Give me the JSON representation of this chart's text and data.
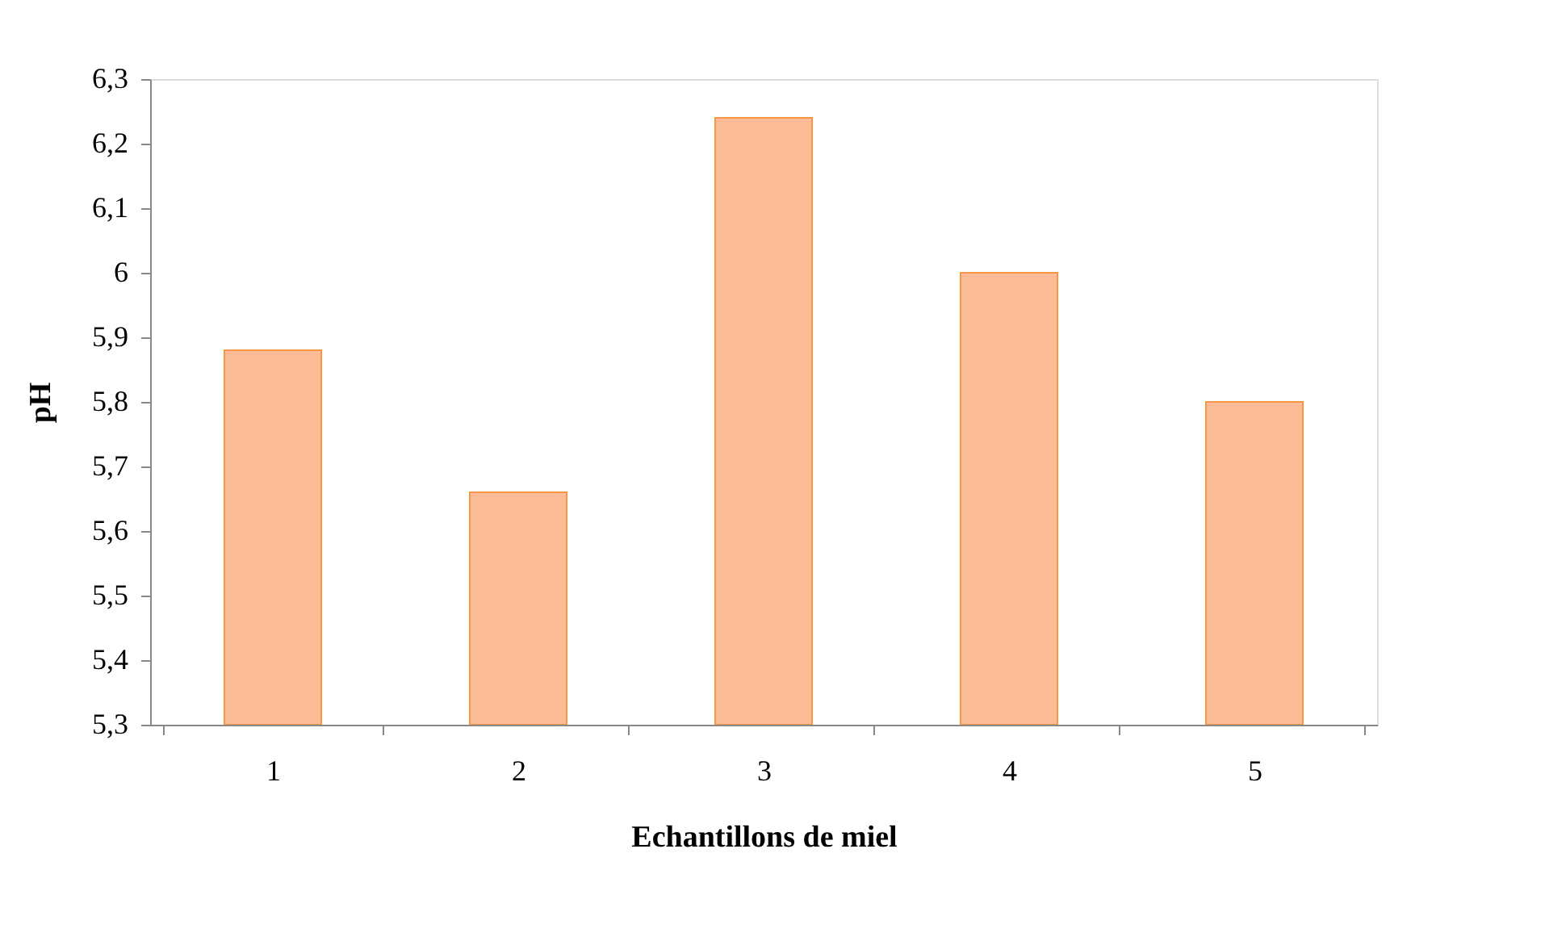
{
  "chart_data": {
    "type": "bar",
    "xlabel": "Echantillons de miel",
    "ylabel": "pH",
    "categories": [
      "1",
      "2",
      "3",
      "4",
      "5"
    ],
    "values": [
      5.88,
      5.66,
      6.24,
      6.0,
      5.8
    ],
    "color": "#fcbd96",
    "ylim": [
      5.3,
      6.3
    ],
    "yticks": [
      {
        "value": 5.3,
        "label": "5,3"
      },
      {
        "value": 5.4,
        "label": "5,4"
      },
      {
        "value": 5.5,
        "label": "5,5"
      },
      {
        "value": 5.6,
        "label": "5,6"
      },
      {
        "value": 5.7,
        "label": "5,7"
      },
      {
        "value": 5.8,
        "label": "5,8"
      },
      {
        "value": 5.9,
        "label": "5,9"
      },
      6,
      {
        "value": 6.1,
        "label": "6,1"
      },
      {
        "value": 6.2,
        "label": "6,2"
      },
      {
        "value": 6.3,
        "label": "6,3"
      }
    ],
    "grid": false
  }
}
